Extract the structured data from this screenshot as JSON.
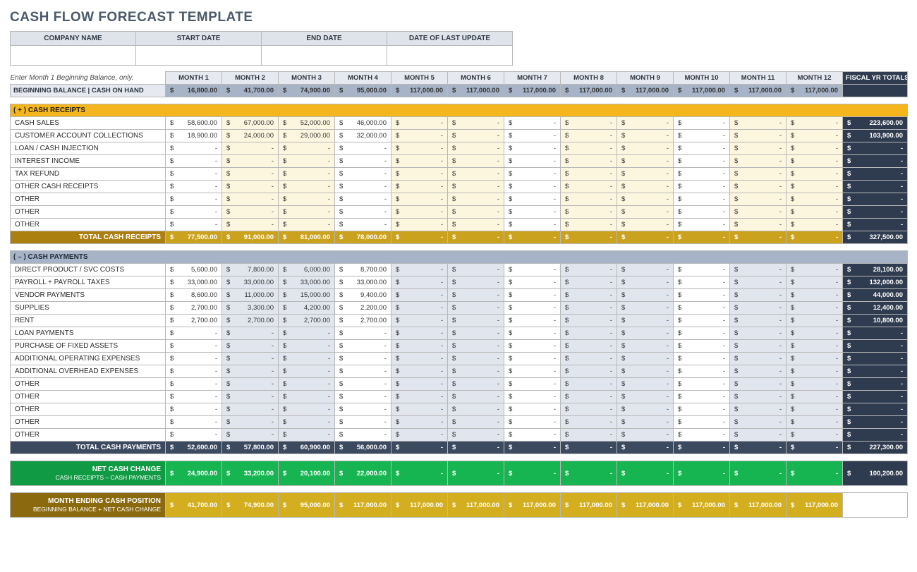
{
  "title": "CASH FLOW FORECAST TEMPLATE",
  "info_headers": [
    "COMPANY NAME",
    "START DATE",
    "END DATE",
    "DATE OF LAST UPDATE"
  ],
  "hint": "Enter Month 1 Beginning Balance, only.",
  "month_headers": [
    "MONTH 1",
    "MONTH 2",
    "MONTH 3",
    "MONTH 4",
    "MONTH 5",
    "MONTH 6",
    "MONTH 7",
    "MONTH 8",
    "MONTH 9",
    "MONTH 10",
    "MONTH 11",
    "MONTH 12"
  ],
  "fy_header": "FISCAL YR TOTALS",
  "beginning_label": "BEGINNING BALANCE  |  CASH ON HAND",
  "beginning": [
    "16,800.00",
    "41,700.00",
    "74,900.00",
    "95,000.00",
    "117,000.00",
    "117,000.00",
    "117,000.00",
    "117,000.00",
    "117,000.00",
    "117,000.00",
    "117,000.00",
    "117,000.00"
  ],
  "receipts_title": "( + )   CASH RECEIPTS",
  "receipts_rows": [
    {
      "label": "CASH SALES",
      "vals": [
        "58,600.00",
        "67,000.00",
        "52,000.00",
        "46,000.00",
        "-",
        "-",
        "-",
        "-",
        "-",
        "-",
        "-",
        "-"
      ],
      "fy": "223,600.00"
    },
    {
      "label": "CUSTOMER ACCOUNT COLLECTIONS",
      "vals": [
        "18,900.00",
        "24,000.00",
        "29,000.00",
        "32,000.00",
        "-",
        "-",
        "-",
        "-",
        "-",
        "-",
        "-",
        "-"
      ],
      "fy": "103,900.00"
    },
    {
      "label": "LOAN / CASH INJECTION",
      "vals": [
        "-",
        "-",
        "-",
        "-",
        "-",
        "-",
        "-",
        "-",
        "-",
        "-",
        "-",
        "-"
      ],
      "fy": "-"
    },
    {
      "label": "INTEREST INCOME",
      "vals": [
        "-",
        "-",
        "-",
        "-",
        "-",
        "-",
        "-",
        "-",
        "-",
        "-",
        "-",
        "-"
      ],
      "fy": "-"
    },
    {
      "label": "TAX REFUND",
      "vals": [
        "-",
        "-",
        "-",
        "-",
        "-",
        "-",
        "-",
        "-",
        "-",
        "-",
        "-",
        "-"
      ],
      "fy": "-"
    },
    {
      "label": "OTHER CASH RECEIPTS",
      "vals": [
        "-",
        "-",
        "-",
        "-",
        "-",
        "-",
        "-",
        "-",
        "-",
        "-",
        "-",
        "-"
      ],
      "fy": "-"
    },
    {
      "label": "OTHER",
      "vals": [
        "-",
        "-",
        "-",
        "-",
        "-",
        "-",
        "-",
        "-",
        "-",
        "-",
        "-",
        "-"
      ],
      "fy": "-"
    },
    {
      "label": "OTHER",
      "vals": [
        "-",
        "-",
        "-",
        "-",
        "-",
        "-",
        "-",
        "-",
        "-",
        "-",
        "-",
        "-"
      ],
      "fy": "-"
    },
    {
      "label": "OTHER",
      "vals": [
        "-",
        "-",
        "-",
        "-",
        "-",
        "-",
        "-",
        "-",
        "-",
        "-",
        "-",
        "-"
      ],
      "fy": "-"
    }
  ],
  "receipts_total_label": "TOTAL CASH RECEIPTS",
  "receipts_total": [
    "77,500.00",
    "91,000.00",
    "81,000.00",
    "78,000.00",
    "-",
    "-",
    "-",
    "-",
    "-",
    "-",
    "-",
    "-"
  ],
  "receipts_total_fy": "327,500.00",
  "payments_title": "( – )   CASH PAYMENTS",
  "payments_rows": [
    {
      "label": "DIRECT PRODUCT / SVC COSTS",
      "vals": [
        "5,600.00",
        "7,800.00",
        "6,000.00",
        "8,700.00",
        "-",
        "-",
        "-",
        "-",
        "-",
        "-",
        "-",
        "-"
      ],
      "fy": "28,100.00"
    },
    {
      "label": "PAYROLL + PAYROLL TAXES",
      "vals": [
        "33,000.00",
        "33,000.00",
        "33,000.00",
        "33,000.00",
        "-",
        "-",
        "-",
        "-",
        "-",
        "-",
        "-",
        "-"
      ],
      "fy": "132,000.00"
    },
    {
      "label": "VENDOR PAYMENTS",
      "vals": [
        "8,600.00",
        "11,000.00",
        "15,000.00",
        "9,400.00",
        "-",
        "-",
        "-",
        "-",
        "-",
        "-",
        "-",
        "-"
      ],
      "fy": "44,000.00"
    },
    {
      "label": "SUPPLIES",
      "vals": [
        "2,700.00",
        "3,300.00",
        "4,200.00",
        "2,200.00",
        "-",
        "-",
        "-",
        "-",
        "-",
        "-",
        "-",
        "-"
      ],
      "fy": "12,400.00"
    },
    {
      "label": "RENT",
      "vals": [
        "2,700.00",
        "2,700.00",
        "2,700.00",
        "2,700.00",
        "-",
        "-",
        "-",
        "-",
        "-",
        "-",
        "-",
        "-"
      ],
      "fy": "10,800.00"
    },
    {
      "label": "LOAN PAYMENTS",
      "vals": [
        "-",
        "-",
        "-",
        "-",
        "-",
        "-",
        "-",
        "-",
        "-",
        "-",
        "-",
        "-"
      ],
      "fy": "-"
    },
    {
      "label": "PURCHASE OF FIXED ASSETS",
      "vals": [
        "-",
        "-",
        "-",
        "-",
        "-",
        "-",
        "-",
        "-",
        "-",
        "-",
        "-",
        "-"
      ],
      "fy": "-"
    },
    {
      "label": "ADDITIONAL OPERATING EXPENSES",
      "vals": [
        "-",
        "-",
        "-",
        "-",
        "-",
        "-",
        "-",
        "-",
        "-",
        "-",
        "-",
        "-"
      ],
      "fy": "-"
    },
    {
      "label": "ADDITIONAL OVERHEAD EXPENSES",
      "vals": [
        "-",
        "-",
        "-",
        "-",
        "-",
        "-",
        "-",
        "-",
        "-",
        "-",
        "-",
        "-"
      ],
      "fy": "-"
    },
    {
      "label": "OTHER",
      "vals": [
        "-",
        "-",
        "-",
        "-",
        "-",
        "-",
        "-",
        "-",
        "-",
        "-",
        "-",
        "-"
      ],
      "fy": "-"
    },
    {
      "label": "OTHER",
      "vals": [
        "-",
        "-",
        "-",
        "-",
        "-",
        "-",
        "-",
        "-",
        "-",
        "-",
        "-",
        "-"
      ],
      "fy": "-"
    },
    {
      "label": "OTHER",
      "vals": [
        "-",
        "-",
        "-",
        "-",
        "-",
        "-",
        "-",
        "-",
        "-",
        "-",
        "-",
        "-"
      ],
      "fy": "-"
    },
    {
      "label": "OTHER",
      "vals": [
        "-",
        "-",
        "-",
        "-",
        "-",
        "-",
        "-",
        "-",
        "-",
        "-",
        "-",
        "-"
      ],
      "fy": "-"
    },
    {
      "label": "OTHER",
      "vals": [
        "-",
        "-",
        "-",
        "-",
        "-",
        "-",
        "-",
        "-",
        "-",
        "-",
        "-",
        "-"
      ],
      "fy": "-"
    }
  ],
  "payments_total_label": "TOTAL CASH PAYMENTS",
  "payments_total": [
    "52,600.00",
    "57,800.00",
    "60,900.00",
    "56,000.00",
    "-",
    "-",
    "-",
    "-",
    "-",
    "-",
    "-",
    "-"
  ],
  "payments_total_fy": "227,300.00",
  "net_label": "NET CASH CHANGE",
  "net_sub": "CASH RECEIPTS – CASH PAYMENTS",
  "net": [
    "24,900.00",
    "33,200.00",
    "20,100.00",
    "22,000.00",
    "-",
    "-",
    "-",
    "-",
    "-",
    "-",
    "-",
    "-"
  ],
  "net_fy": "100,200.00",
  "end_label": "MONTH ENDING CASH POSITION",
  "end_sub": "BEGINNING BALANCE + NET CASH CHANGE",
  "end": [
    "41,700.00",
    "74,900.00",
    "95,000.00",
    "117,000.00",
    "117,000.00",
    "117,000.00",
    "117,000.00",
    "117,000.00",
    "117,000.00",
    "117,000.00",
    "117,000.00",
    "117,000.00"
  ],
  "alt_months": [
    1,
    2,
    4,
    5,
    7,
    8,
    10,
    11
  ],
  "currency": "$"
}
